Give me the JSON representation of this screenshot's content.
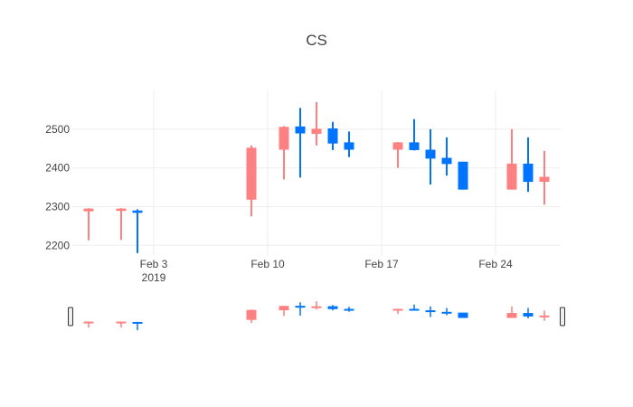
{
  "chart_data": {
    "type": "candlestick",
    "title": "CS",
    "xlabel": "",
    "ylabel": "",
    "ylim": [
      2175,
      2600
    ],
    "xlim": [
      "2019-01-29",
      "2019-02-27"
    ],
    "y_ticks": [
      2200,
      2300,
      2400,
      2500
    ],
    "x_ticks": [
      {
        "date": "2019-02-03",
        "label": "Feb 3",
        "sublabel": "2019"
      },
      {
        "date": "2019-02-10",
        "label": "Feb 10",
        "sublabel": ""
      },
      {
        "date": "2019-02-17",
        "label": "Feb 17",
        "sublabel": ""
      },
      {
        "date": "2019-02-24",
        "label": "Feb 24",
        "sublabel": ""
      }
    ],
    "increasing_color": "#0074ff",
    "decreasing_color": "#ff8080",
    "grid": true,
    "rangeslider": true,
    "candles": [
      {
        "date": "2019-01-30",
        "open": 2295,
        "high": 2296,
        "low": 2213,
        "close": 2288
      },
      {
        "date": "2019-02-01",
        "open": 2295,
        "high": 2296,
        "low": 2214,
        "close": 2289
      },
      {
        "date": "2019-02-02",
        "open": 2284,
        "high": 2293,
        "low": 2180,
        "close": 2290
      },
      {
        "date": "2019-02-09",
        "open": 2452,
        "high": 2458,
        "low": 2275,
        "close": 2318
      },
      {
        "date": "2019-02-11",
        "open": 2506,
        "high": 2508,
        "low": 2370,
        "close": 2447
      },
      {
        "date": "2019-02-12",
        "open": 2489,
        "high": 2555,
        "low": 2375,
        "close": 2507
      },
      {
        "date": "2019-02-13",
        "open": 2501,
        "high": 2570,
        "low": 2458,
        "close": 2488
      },
      {
        "date": "2019-02-14",
        "open": 2463,
        "high": 2519,
        "low": 2446,
        "close": 2502
      },
      {
        "date": "2019-02-15",
        "open": 2447,
        "high": 2494,
        "low": 2428,
        "close": 2466
      },
      {
        "date": "2019-02-18",
        "open": 2466,
        "high": 2467,
        "low": 2400,
        "close": 2447
      },
      {
        "date": "2019-02-19",
        "open": 2446,
        "high": 2526,
        "low": 2445,
        "close": 2466
      },
      {
        "date": "2019-02-20",
        "open": 2424,
        "high": 2500,
        "low": 2357,
        "close": 2447
      },
      {
        "date": "2019-02-21",
        "open": 2410,
        "high": 2479,
        "low": 2380,
        "close": 2426
      },
      {
        "date": "2019-02-22",
        "open": 2344,
        "high": 2416,
        "low": 2344,
        "close": 2416
      },
      {
        "date": "2019-02-25",
        "open": 2411,
        "high": 2500,
        "low": 2344,
        "close": 2344
      },
      {
        "date": "2019-02-26",
        "open": 2364,
        "high": 2479,
        "low": 2338,
        "close": 2411
      },
      {
        "date": "2019-02-27",
        "open": 2377,
        "high": 2444,
        "low": 2305,
        "close": 2364
      }
    ]
  }
}
